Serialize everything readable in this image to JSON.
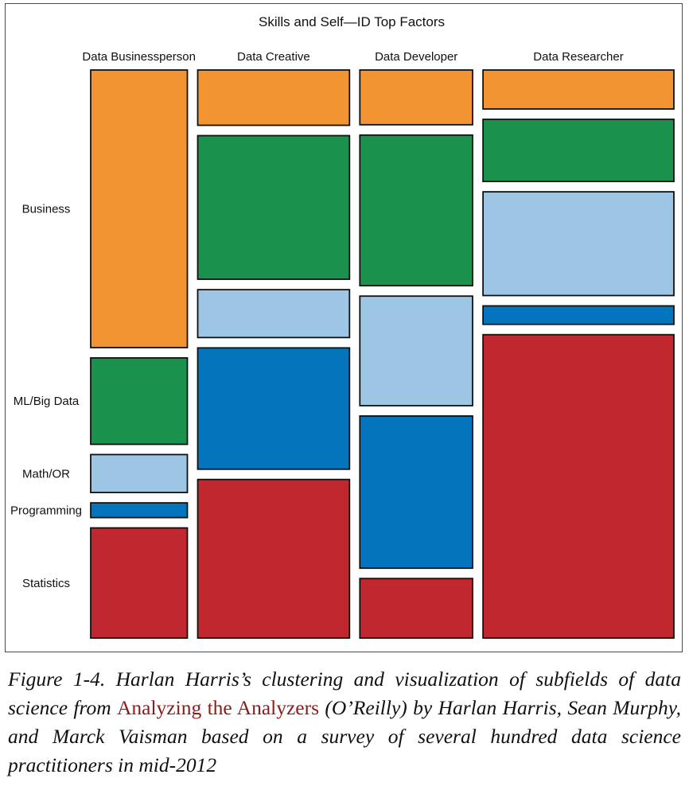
{
  "chart_data": {
    "type": "mosaic",
    "title": "Skills and Self—ID Top Factors",
    "columns": [
      "Data Businessperson",
      "Data Creative",
      "Data Developer",
      "Data Researcher"
    ],
    "column_widths": [
      0.198,
      0.311,
      0.231,
      0.391
    ],
    "skills": [
      "Business",
      "ML/Big Data",
      "Math/OR",
      "Programming",
      "Statistics"
    ],
    "row_labels": [
      "Business",
      "ML/Big Data",
      "Math/OR",
      "Programming",
      "Statistics"
    ],
    "colors": {
      "Business": "#f39433",
      "ML/Big Data": "#1a914c",
      "Math/OR": "#9dc6e5",
      "Programming": "#0474bc",
      "Statistics": "#c1272f"
    },
    "series": [
      {
        "name": "Data Businessperson",
        "values": [
          0.527,
          0.164,
          0.072,
          0.028,
          0.209
        ]
      },
      {
        "name": "Data Creative",
        "values": [
          0.104,
          0.27,
          0.09,
          0.228,
          0.298
        ]
      },
      {
        "name": "Data Developer",
        "values": [
          0.104,
          0.286,
          0.208,
          0.289,
          0.113
        ]
      },
      {
        "name": "Data Researcher",
        "values": [
          0.074,
          0.118,
          0.197,
          0.035,
          0.576
        ]
      }
    ]
  },
  "caption": {
    "prefix": "Figure 1-4. Harlan Harris’s clustering and visualization of subfields of data science from ",
    "link": "Analyzing the Analyzers",
    "suffix": " (O’Reilly) by Harlan Harris, Sean Murphy, and Marck Vaisman based on a survey of several hundred data science practitioners in mid-2012"
  }
}
